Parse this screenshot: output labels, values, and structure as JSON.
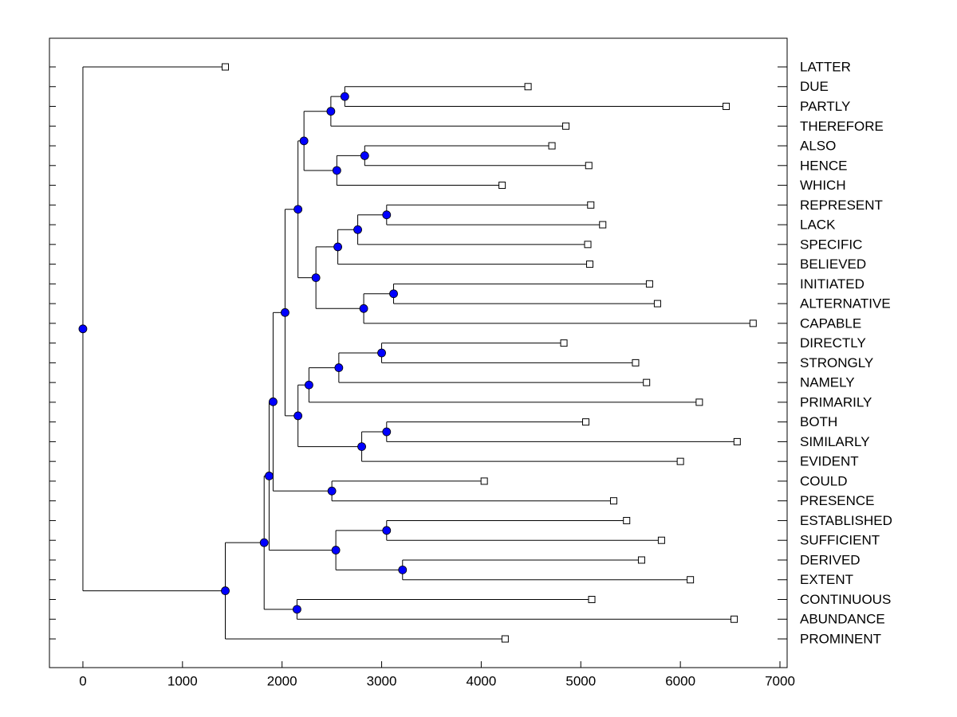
{
  "chart_data": {
    "type": "dendrogram",
    "xlim": [
      -336,
      7072
    ],
    "xticks": [
      0,
      1000,
      2000,
      3000,
      4000,
      5000,
      6000,
      7000
    ],
    "node_color": "#0000ff",
    "leaf_color": "#ffffff",
    "tree": {
      "value": 0,
      "children": [
        {
          "label": "LATTER",
          "value": 1430
        },
        {
          "value": 1430,
          "children": [
            {
              "value": 1820,
              "children": [
                {
                  "value": 1870,
                  "children": [
                    {
                      "value": 1910,
                      "children": [
                        {
                          "value": 2030,
                          "children": [
                            {
                              "value": 2160,
                              "children": [
                                {
                                  "value": 2220,
                                  "children": [
                                    {
                                      "value": 2490,
                                      "children": [
                                        {
                                          "value": 2630,
                                          "children": [
                                            {
                                              "label": "DUE",
                                              "value": 4470
                                            },
                                            {
                                              "label": "PARTLY",
                                              "value": 6460
                                            }
                                          ]
                                        },
                                        {
                                          "label": "THEREFORE",
                                          "value": 4850
                                        }
                                      ]
                                    },
                                    {
                                      "value": 2550,
                                      "children": [
                                        {
                                          "value": 2830,
                                          "children": [
                                            {
                                              "label": "ALSO",
                                              "value": 4710
                                            },
                                            {
                                              "label": "HENCE",
                                              "value": 5080
                                            }
                                          ]
                                        },
                                        {
                                          "label": "WHICH",
                                          "value": 4210
                                        }
                                      ]
                                    }
                                  ]
                                },
                                {
                                  "value": 2340,
                                  "children": [
                                    {
                                      "value": 2560,
                                      "children": [
                                        {
                                          "value": 2760,
                                          "children": [
                                            {
                                              "value": 3050,
                                              "children": [
                                                {
                                                  "label": "REPRESENT",
                                                  "value": 5100
                                                },
                                                {
                                                  "label": "LACK",
                                                  "value": 5220
                                                }
                                              ]
                                            },
                                            {
                                              "label": "SPECIFIC",
                                              "value": 5070
                                            }
                                          ]
                                        },
                                        {
                                          "label": "BELIEVED",
                                          "value": 5090
                                        }
                                      ]
                                    },
                                    {
                                      "value": 2820,
                                      "children": [
                                        {
                                          "value": 3120,
                                          "children": [
                                            {
                                              "label": "INITIATED",
                                              "value": 5690
                                            },
                                            {
                                              "label": "ALTERNATIVE",
                                              "value": 5770
                                            }
                                          ]
                                        },
                                        {
                                          "label": "CAPABLE",
                                          "value": 6730
                                        }
                                      ]
                                    }
                                  ]
                                }
                              ]
                            },
                            {
                              "value": 2160,
                              "children": [
                                {
                                  "value": 2270,
                                  "children": [
                                    {
                                      "value": 2570,
                                      "children": [
                                        {
                                          "value": 3000,
                                          "children": [
                                            {
                                              "label": "DIRECTLY",
                                              "value": 4830
                                            },
                                            {
                                              "label": "STRONGLY",
                                              "value": 5550
                                            }
                                          ]
                                        },
                                        {
                                          "label": "NAMELY",
                                          "value": 5660
                                        }
                                      ]
                                    },
                                    {
                                      "label": "PRIMARILY",
                                      "value": 6190
                                    }
                                  ]
                                },
                                {
                                  "value": 2800,
                                  "children": [
                                    {
                                      "value": 3050,
                                      "children": [
                                        {
                                          "label": "BOTH",
                                          "value": 5050
                                        },
                                        {
                                          "label": "SIMILARLY",
                                          "value": 6570
                                        }
                                      ]
                                    },
                                    {
                                      "label": "EVIDENT",
                                      "value": 6000
                                    }
                                  ]
                                }
                              ]
                            }
                          ]
                        },
                        {
                          "value": 2500,
                          "children": [
                            {
                              "label": "COULD",
                              "value": 4030
                            },
                            {
                              "label": "PRESENCE",
                              "value": 5330
                            }
                          ]
                        }
                      ]
                    },
                    {
                      "value": 2540,
                      "children": [
                        {
                          "value": 3050,
                          "children": [
                            {
                              "label": "ESTABLISHED",
                              "value": 5460
                            },
                            {
                              "label": "SUFFICIENT",
                              "value": 5810
                            }
                          ]
                        },
                        {
                          "value": 3210,
                          "children": [
                            {
                              "label": "DERIVED",
                              "value": 5610
                            },
                            {
                              "label": "EXTENT",
                              "value": 6100
                            }
                          ]
                        }
                      ]
                    }
                  ]
                },
                {
                  "value": 2150,
                  "children": [
                    {
                      "label": "CONTINUOUS",
                      "value": 5110
                    },
                    {
                      "label": "ABUNDANCE",
                      "value": 6540
                    }
                  ]
                }
              ]
            },
            {
              "label": "PROMINENT",
              "value": 4240
            }
          ]
        }
      ]
    }
  }
}
